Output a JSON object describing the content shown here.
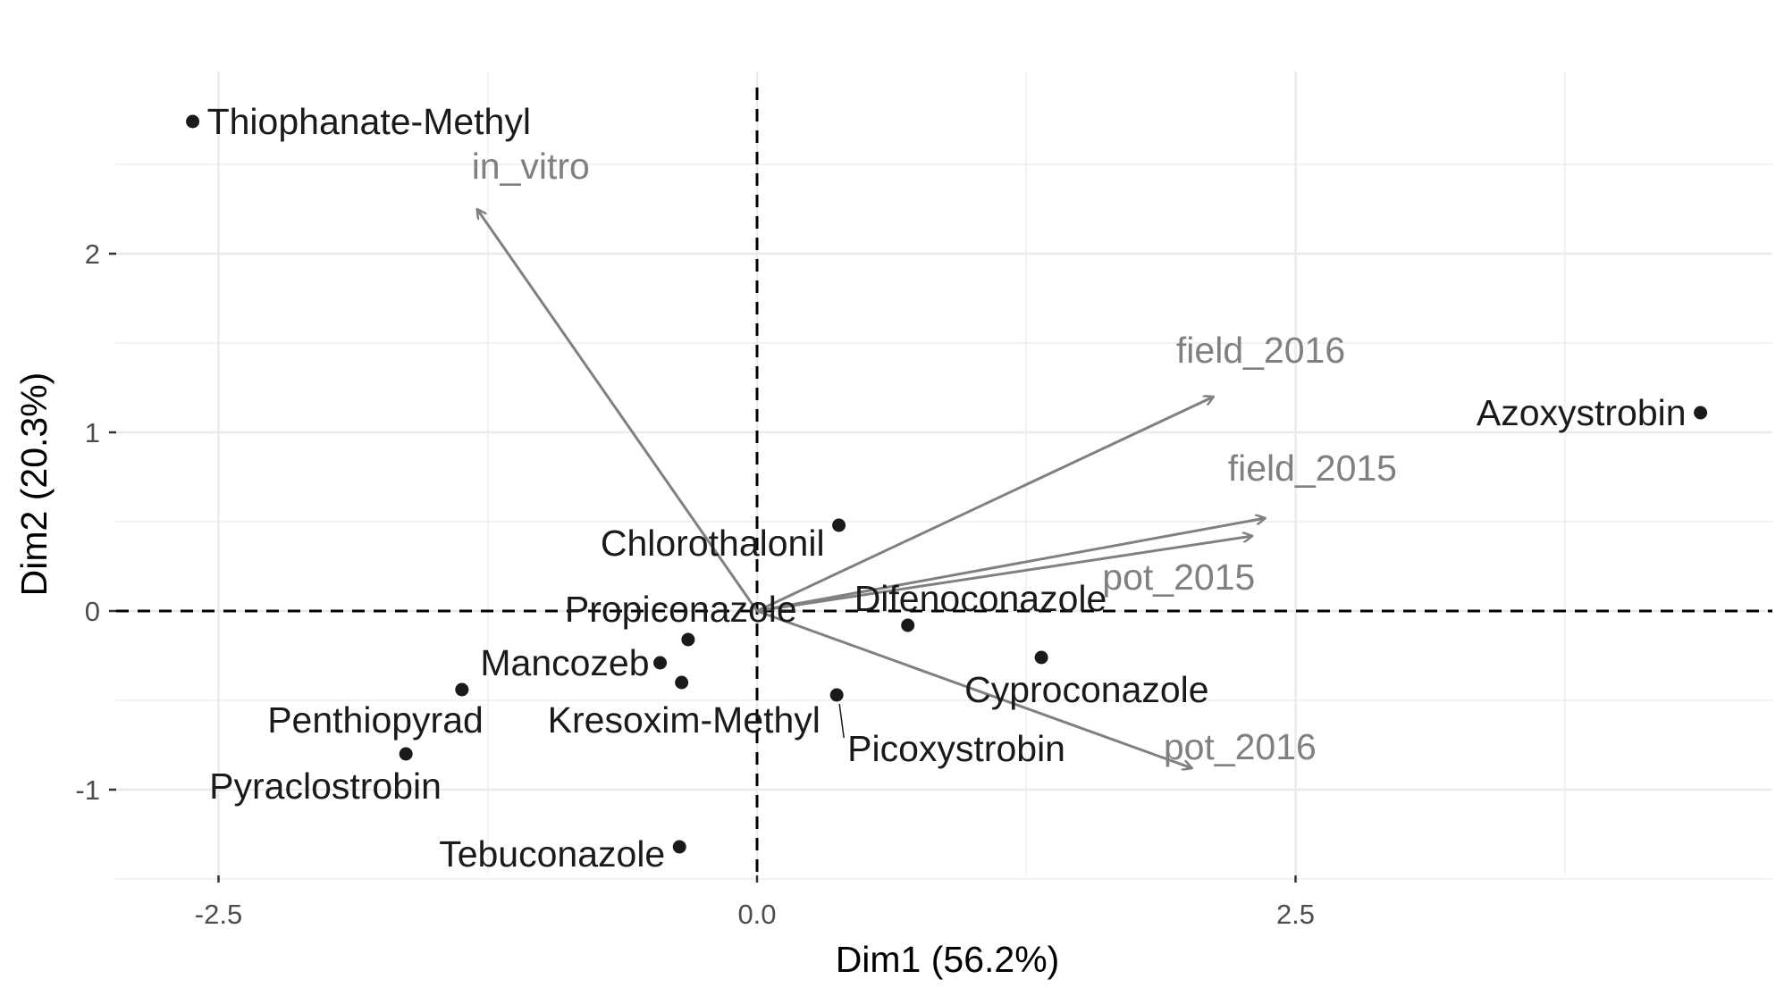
{
  "chart_data": {
    "type": "scatter",
    "subtype": "pca-biplot",
    "xlabel": "Dim1 (56.2%)",
    "ylabel": "Dim2 (20.3%)",
    "xlim": [
      -3.0,
      4.7
    ],
    "ylim": [
      -1.5,
      2.8
    ],
    "x_ticks": [
      {
        "value": -2.5,
        "label": "-2.5"
      },
      {
        "value": 0.0,
        "label": "0.0"
      },
      {
        "value": 2.5,
        "label": "2.5"
      }
    ],
    "y_ticks": [
      {
        "value": -1,
        "label": "-1"
      },
      {
        "value": 0,
        "label": "0"
      },
      {
        "value": 1,
        "label": "1"
      },
      {
        "value": 2,
        "label": "2"
      }
    ],
    "grid": true,
    "reference_lines": "dashed lines at x=0 and y=0",
    "colors": {
      "points": "#1a1a1a",
      "variables": "#808080",
      "grid": "#ebebeb"
    },
    "individuals": [
      {
        "name": "Thiophanate-Methyl",
        "x": -2.62,
        "y": 2.74
      },
      {
        "name": "Azoxystrobin",
        "x": 4.38,
        "y": 1.11
      },
      {
        "name": "Chlorothalonil",
        "x": 0.38,
        "y": 0.48
      },
      {
        "name": "Difenoconazole",
        "x": 0.7,
        "y": -0.08
      },
      {
        "name": "Propiconazole",
        "x": -0.32,
        "y": -0.16
      },
      {
        "name": "Mancozeb",
        "x": -0.45,
        "y": -0.29
      },
      {
        "name": "Kresoxim-Methyl",
        "x": -0.35,
        "y": -0.4
      },
      {
        "name": "Penthiopyrad",
        "x": -1.37,
        "y": -0.44
      },
      {
        "name": "Pyraclostrobin",
        "x": -1.63,
        "y": -0.8
      },
      {
        "name": "Cyproconazole",
        "x": 1.32,
        "y": -0.26
      },
      {
        "name": "Picoxystrobin",
        "x": 0.37,
        "y": -0.47
      },
      {
        "name": "Tebuconazole",
        "x": -0.36,
        "y": -1.32
      }
    ],
    "variables": [
      {
        "name": "in_vitro",
        "x": -1.3,
        "y": 2.25
      },
      {
        "name": "field_2016",
        "x": 2.12,
        "y": 1.2
      },
      {
        "name": "field_2015",
        "x": 2.36,
        "y": 0.52
      },
      {
        "name": "pot_2015",
        "x": 2.3,
        "y": 0.42
      },
      {
        "name": "pot_2016",
        "x": 2.02,
        "y": -0.88
      }
    ]
  }
}
